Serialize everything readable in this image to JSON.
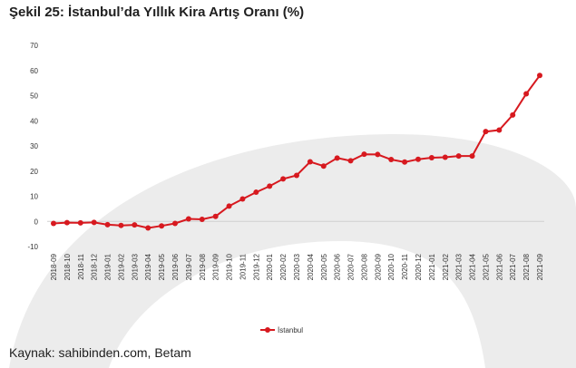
{
  "figure": {
    "title": "Şekil 25: İstanbul’da Yıllık Kira Artış Oranı (%)",
    "source": "Kaynak: sahibinden.com, Betam"
  },
  "colors": {
    "series": "#d7191f",
    "watermark": "#ececec",
    "axis": "#d0d0d0"
  },
  "chart_data": {
    "type": "line",
    "title": "",
    "xlabel": "",
    "ylabel": "",
    "ylim": [
      -10,
      70
    ],
    "yticks": [
      -10,
      0,
      10,
      20,
      30,
      40,
      50,
      60,
      70
    ],
    "grid": false,
    "legend": "bottom-center",
    "x": [
      "2018-09",
      "2018-10",
      "2018-11",
      "2018-12",
      "2019-01",
      "2019-02",
      "2019-03",
      "2019-04",
      "2019-05",
      "2019-06",
      "2019-07",
      "2019-08",
      "2019-09",
      "2019-10",
      "2019-11",
      "2019-12",
      "2020-01",
      "2020-02",
      "2020-03",
      "2020-04",
      "2020-05",
      "2020-06",
      "2020-07",
      "2020-08",
      "2020-09",
      "2020-10",
      "2020-11",
      "2020-12",
      "2021-01",
      "2021-02",
      "2021-03",
      "2021-04",
      "2021-05",
      "2021-06",
      "2021-07",
      "2021-08",
      "2021-09"
    ],
    "series": [
      {
        "name": "İstanbul",
        "values": [
          -0.8,
          -0.5,
          -0.6,
          -0.4,
          -1.3,
          -1.6,
          -1.4,
          -2.6,
          -1.8,
          -0.8,
          1.0,
          0.8,
          2.0,
          6.1,
          8.9,
          11.6,
          14.0,
          16.9,
          18.3,
          23.7,
          22.0,
          25.2,
          24.1,
          26.7,
          26.6,
          24.6,
          23.6,
          24.7,
          25.3,
          25.5,
          26.0,
          26.0,
          35.7,
          36.3,
          42.3,
          50.7,
          58.0
        ]
      }
    ]
  }
}
